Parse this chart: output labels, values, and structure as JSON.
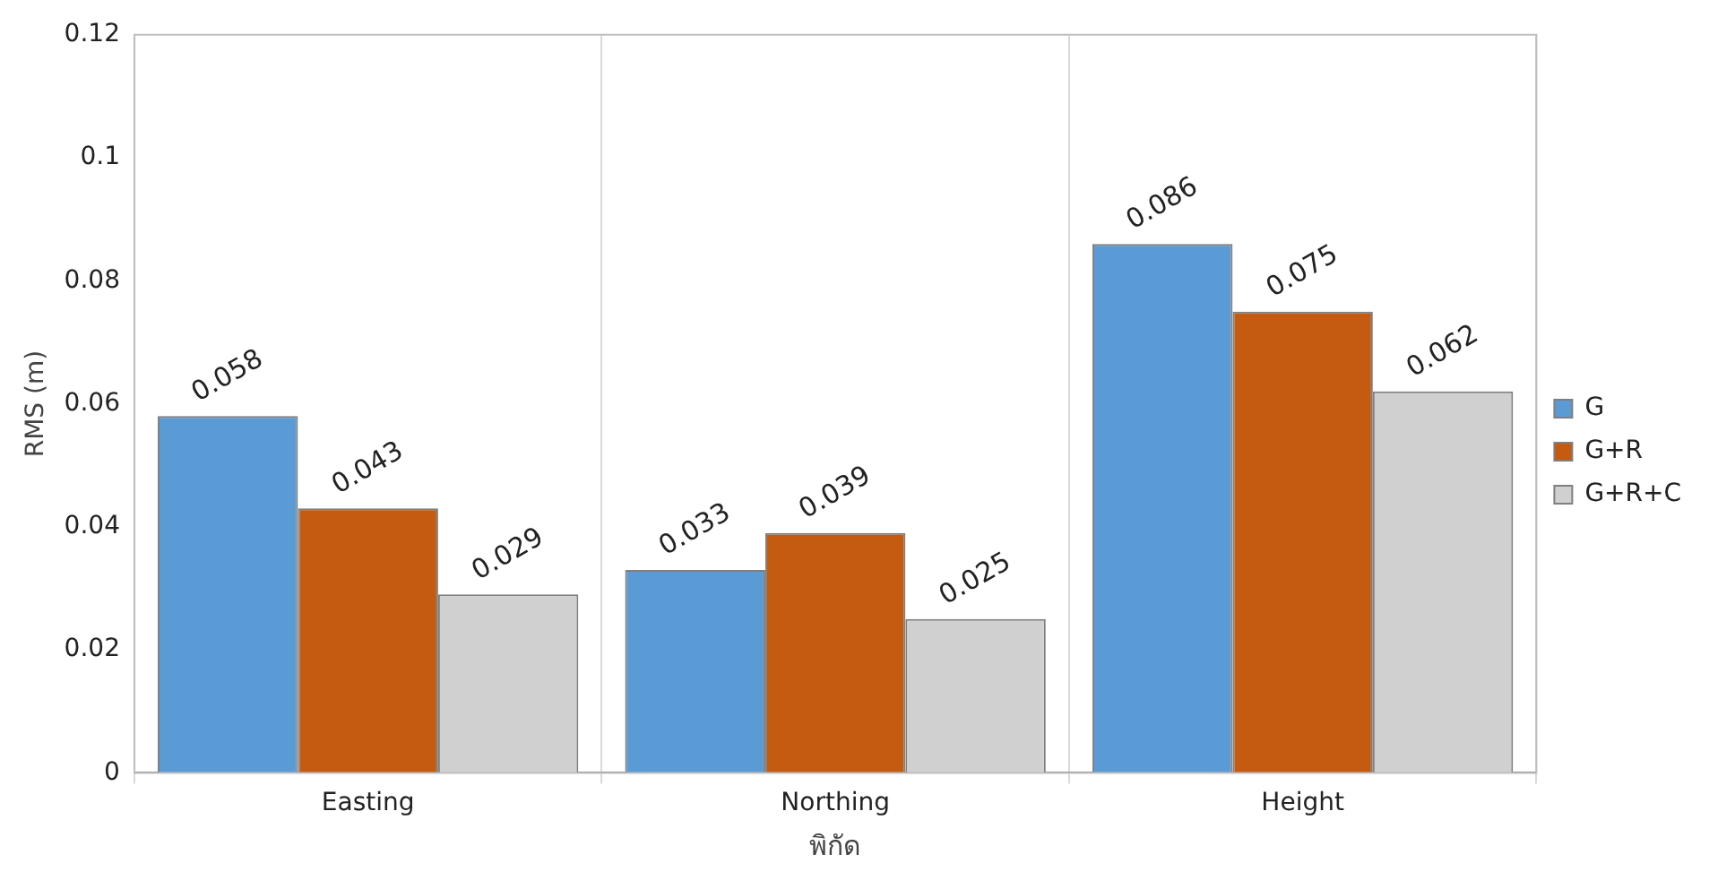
{
  "chart_data": {
    "type": "bar",
    "xlabel": "พิกัด",
    "ylabel": "RMS (m)",
    "categories": [
      "Easting",
      "Northing",
      "Height"
    ],
    "series": [
      {
        "name": "G",
        "color": "#5b9bd5",
        "values": [
          0.058,
          0.033,
          0.086
        ]
      },
      {
        "name": "G+R",
        "color": "#c55a11",
        "values": [
          0.043,
          0.039,
          0.075
        ]
      },
      {
        "name": "G+R+C",
        "color": "#d0d0d0",
        "values": [
          0.029,
          0.025,
          0.062
        ]
      }
    ],
    "ylim": [
      0,
      0.12
    ],
    "yticks": [
      0,
      0.02,
      0.04,
      0.06,
      0.08,
      0.1,
      0.12
    ],
    "grid": "x",
    "legend": "right",
    "data_labels": true
  }
}
